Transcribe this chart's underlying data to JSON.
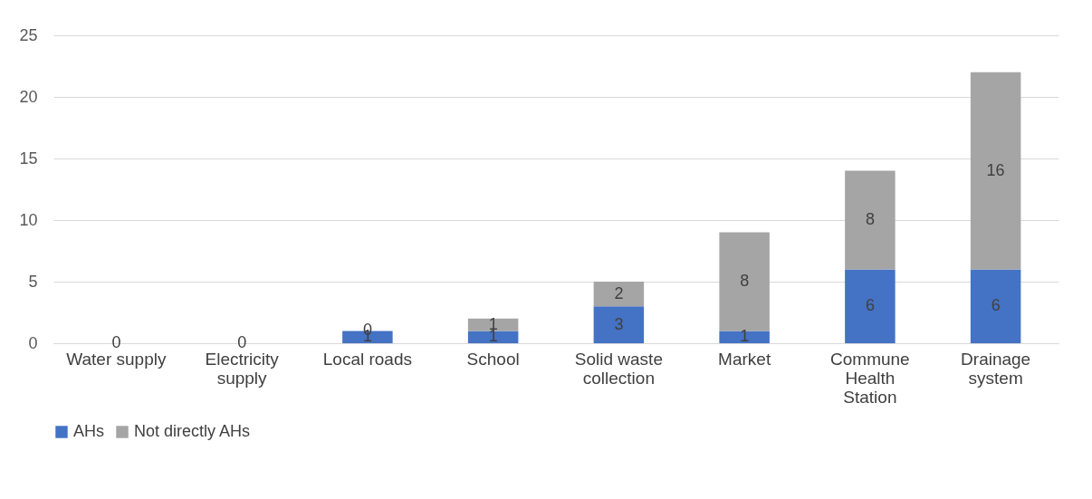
{
  "chart_data": {
    "type": "bar",
    "stacked": true,
    "categories": [
      "Water supply",
      "Electricity supply",
      "Local roads",
      "School",
      "Solid waste collection",
      "Market",
      "Commune Health Station",
      "Drainage system"
    ],
    "series": [
      {
        "name": "AHs",
        "color": "#4472c4",
        "values": [
          0,
          0,
          1,
          1,
          3,
          1,
          6,
          6
        ],
        "value_labels": [
          "0",
          "0",
          "1",
          "1",
          "3",
          "1",
          "6",
          "6"
        ]
      },
      {
        "name": "Not directly AHs",
        "color": "#a5a5a5",
        "values": [
          0,
          0,
          0,
          1,
          2,
          8,
          8,
          16
        ],
        "value_labels": [
          null,
          null,
          "0",
          "1",
          "2",
          "8",
          "8",
          "16"
        ]
      }
    ],
    "ylim": [
      0,
      25
    ],
    "yticks": [
      0,
      5,
      10,
      15,
      20,
      25
    ],
    "grid": "y",
    "legend": "bottom"
  }
}
